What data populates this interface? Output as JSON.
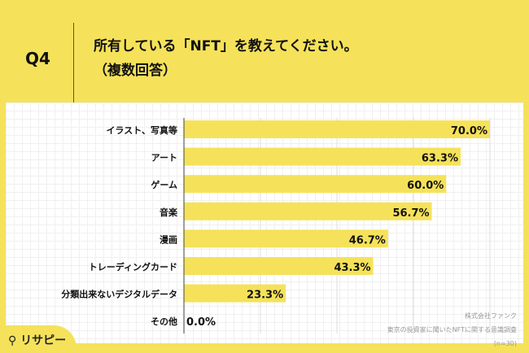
{
  "question_number": "Q4",
  "title_line1": "所有している「NFT」を教えてください。",
  "title_line2": "（複数回答）",
  "source": {
    "company": "株式会社ファンク",
    "survey": "東京の投資家に聞いたNFTに関する意識調査",
    "n": "(n=30)"
  },
  "logo": "リサピー",
  "colors": {
    "bar": "#F5E25A",
    "background": "#F5E25A"
  },
  "chart_data": {
    "type": "bar",
    "orientation": "horizontal",
    "categories": [
      "イラスト、写真等",
      "アート",
      "ゲーム",
      "音楽",
      "漫画",
      "トレーディングカード",
      "分類出来ないデジタルデータ",
      "その他"
    ],
    "values": [
      70.0,
      63.3,
      60.0,
      56.7,
      46.7,
      43.3,
      23.3,
      0.0
    ],
    "labels": [
      "70.0%",
      "63.3%",
      "60.0%",
      "56.7%",
      "46.7%",
      "43.3%",
      "23.3%",
      "0.0%"
    ],
    "xlim": [
      0,
      70
    ],
    "grid": true
  }
}
